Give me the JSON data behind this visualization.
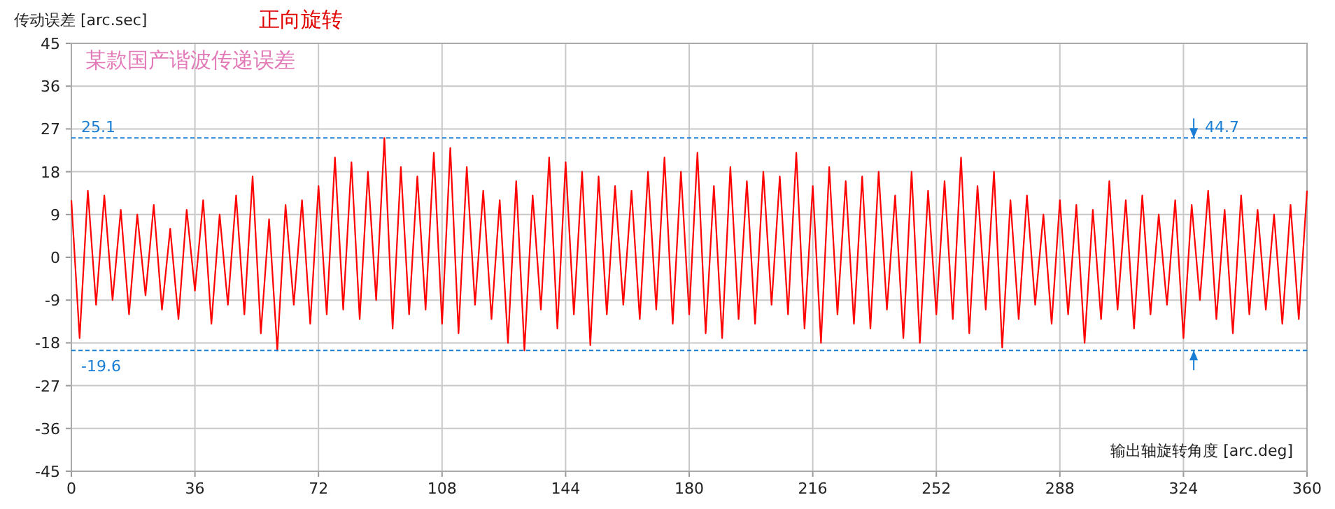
{
  "chart_data": {
    "type": "line",
    "title": "正向旋转",
    "xlabel": "输出轴旋转角度 [arc.deg]",
    "ylabel": "传动误差 [arc.sec]",
    "annotations": [
      "某款国产谐波传递误差",
      {
        "text": "44.7",
        "x": 327,
        "y": 25.1
      }
    ],
    "x": [
      0,
      2.4,
      4.8,
      7.2,
      9.6,
      12,
      14.4,
      16.8,
      19.2,
      21.6,
      24,
      26.4,
      28.8,
      31.2,
      33.6,
      36,
      38.4,
      40.8,
      43.2,
      45.6,
      48,
      50.4,
      52.8,
      55.2,
      57.6,
      60,
      62.4,
      64.8,
      67.2,
      69.6,
      72,
      74.4,
      76.8,
      79.2,
      81.6,
      84,
      86.4,
      88.8,
      91.2,
      93.6,
      96,
      98.4,
      100.8,
      103.2,
      105.6,
      108,
      110.4,
      112.8,
      115.2,
      117.6,
      120,
      122.4,
      124.8,
      127.2,
      129.6,
      132,
      134.4,
      136.8,
      139.2,
      141.6,
      144,
      146.4,
      148.8,
      151.2,
      153.6,
      156,
      158.4,
      160.8,
      163.2,
      165.6,
      168,
      170.4,
      172.8,
      175.2,
      177.6,
      180,
      182.4,
      184.8,
      187.2,
      189.6,
      192,
      194.4,
      196.8,
      199.2,
      201.6,
      204,
      206.4,
      208.8,
      211.2,
      213.6,
      216,
      218.4,
      220.8,
      223.2,
      225.6,
      228,
      230.4,
      232.8,
      235.2,
      237.6,
      240,
      242.4,
      244.8,
      247.2,
      249.6,
      252,
      254.4,
      256.8,
      259.2,
      261.6,
      264,
      266.4,
      268.8,
      271.2,
      273.6,
      276,
      278.4,
      280.8,
      283.2,
      285.6,
      288,
      290.4,
      292.8,
      295.2,
      297.6,
      300,
      302.4,
      304.8,
      307.2,
      309.6,
      312,
      314.4,
      316.8,
      319.2,
      321.6,
      324,
      326.4,
      328.8,
      331.2,
      333.6,
      336,
      338.4,
      340.8,
      343.2,
      345.6,
      348,
      350.4,
      352.8,
      355.2,
      357.6,
      360
    ],
    "series": [
      {
        "color": "#ff0000",
        "values": [
          12,
          -17,
          14,
          -10,
          13,
          -9,
          10,
          -12,
          9,
          -8,
          11,
          -11,
          6,
          -13,
          10,
          -7,
          12,
          -14,
          9,
          -10,
          13,
          -12,
          17,
          -16,
          8,
          -19.6,
          11,
          -10,
          12,
          -14,
          15,
          -12,
          21,
          -11,
          20,
          -13,
          18,
          -9,
          25.1,
          -15,
          19,
          -12,
          17,
          -11,
          22,
          -14,
          23,
          -16,
          19,
          -10,
          14,
          -13,
          12,
          -18,
          16,
          -19.6,
          13,
          -11,
          21,
          -15,
          20,
          -12,
          18,
          -18.5,
          17,
          -12,
          15,
          -10,
          14,
          -13,
          18,
          -11,
          21,
          -14,
          18,
          -12,
          22,
          -16,
          15,
          -17,
          19,
          -13,
          16,
          -14,
          18,
          -10,
          17,
          -12,
          22,
          -15,
          15,
          -18,
          19,
          -12,
          16,
          -14,
          17,
          -15,
          18,
          -11,
          13,
          -17,
          18,
          -18,
          14,
          -12,
          16,
          -13,
          21,
          -16,
          15,
          -11,
          18,
          -19,
          12,
          -13,
          13,
          -10,
          9,
          -14,
          12,
          -12,
          11,
          -18,
          10,
          -13,
          16,
          -11,
          12,
          -15,
          13,
          -12,
          9,
          -10,
          12,
          -17,
          11,
          -9,
          14,
          -13,
          10,
          -16,
          13,
          -12,
          10,
          -11,
          9,
          -14,
          11,
          -13,
          14
        ]
      }
    ],
    "xlim": [
      0,
      360
    ],
    "xticks": [
      0,
      36,
      72,
      108,
      144,
      180,
      216,
      252,
      288,
      324,
      360
    ],
    "ylim": [
      -45,
      45
    ],
    "yticks": [
      -45,
      -36,
      -27,
      -18,
      -9,
      0,
      9,
      18,
      27,
      36,
      45
    ],
    "ref_lines": [
      {
        "axis": "y",
        "value": 25.1,
        "label": "25.1",
        "color": "#1a7fd4",
        "line_style": "dashed"
      },
      {
        "axis": "y",
        "value": -19.6,
        "label": "-19.6",
        "color": "#1a7fd4",
        "line_style": "dashed"
      }
    ],
    "grid": true,
    "marker": "none",
    "line_style": "solid"
  }
}
